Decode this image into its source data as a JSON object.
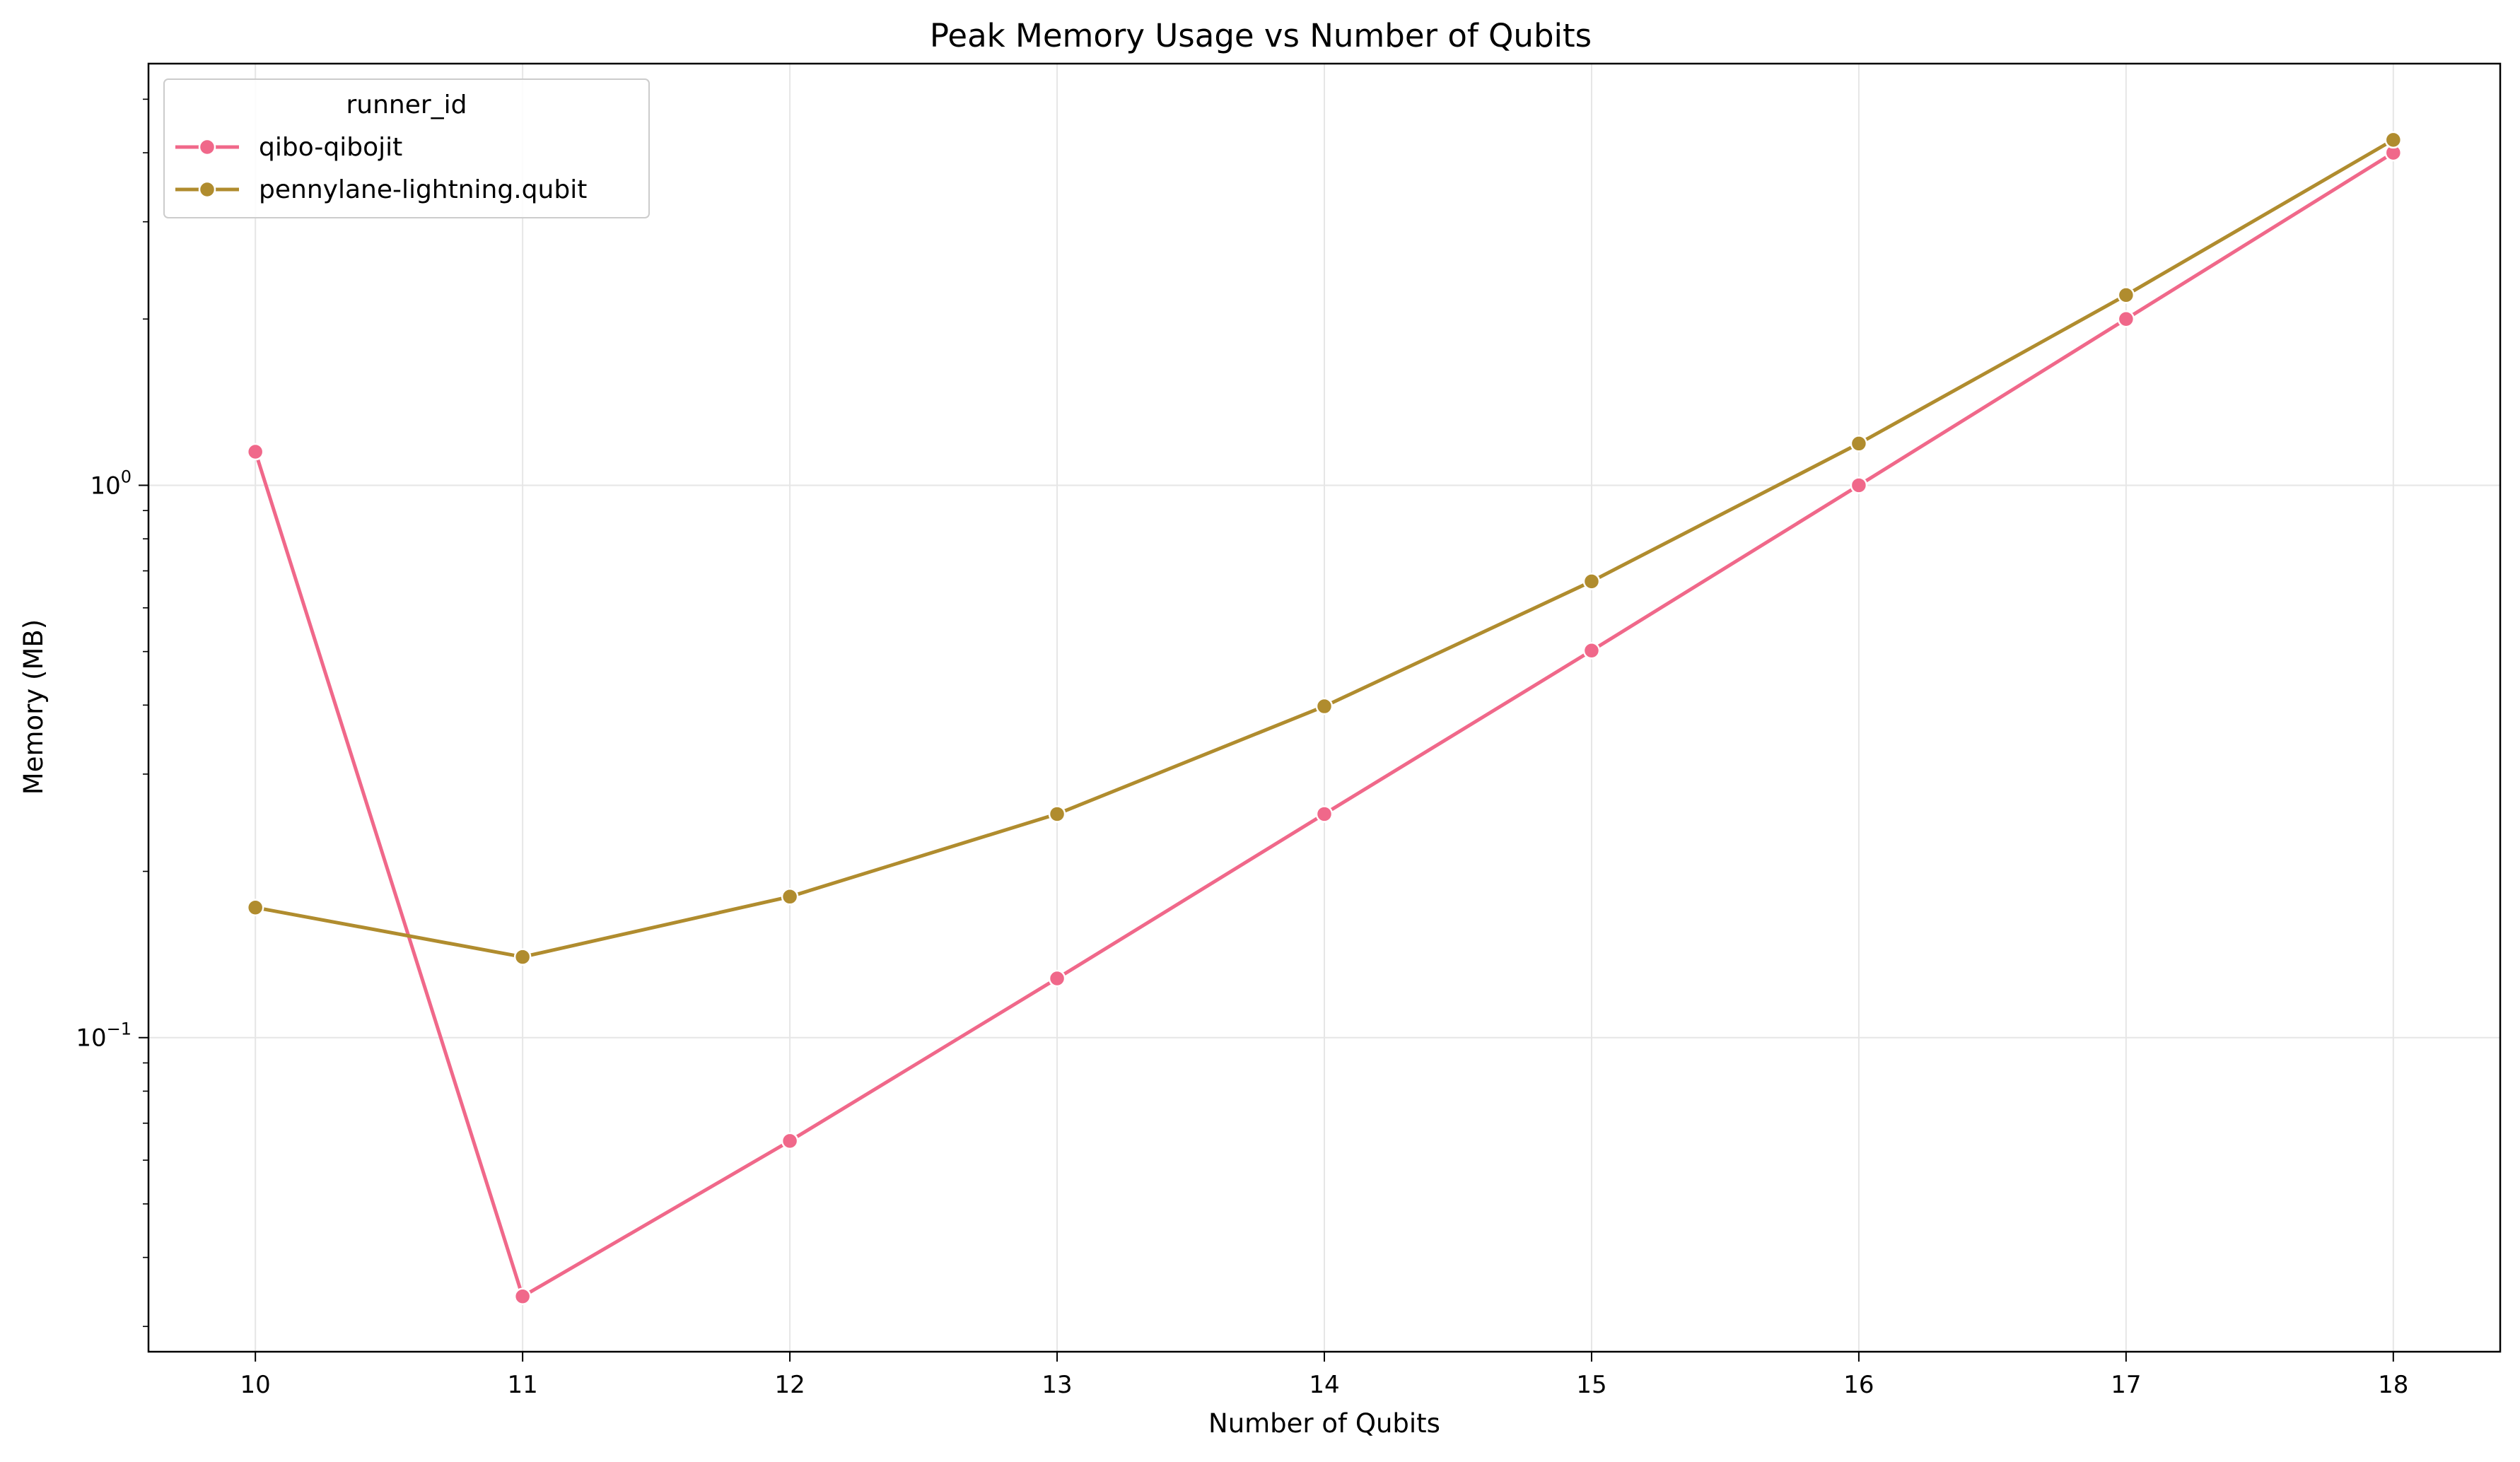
{
  "chart_data": {
    "type": "line",
    "title": "Peak Memory Usage vs Number of Qubits",
    "xlabel": "Number of Qubits",
    "ylabel": "Memory (MB)",
    "yscale": "log",
    "x": [
      10,
      11,
      12,
      13,
      14,
      15,
      16,
      17,
      18
    ],
    "xticks": [
      "10",
      "11",
      "12",
      "13",
      "14",
      "15",
      "16",
      "17",
      "18"
    ],
    "xlim": [
      9.6,
      18.4
    ],
    "ylim": [
      0.027,
      5.8
    ],
    "yticks": [
      {
        "value": 0.1,
        "base": "10",
        "exp": "−1"
      },
      {
        "value": 1,
        "base": "10",
        "exp": "0"
      }
    ],
    "grid": true,
    "legend": {
      "title": "runner_id",
      "position": "top-left"
    },
    "series": [
      {
        "name": "qibo-qibojit",
        "color": "#f0688a",
        "values": [
          1.15,
          0.034,
          0.065,
          0.128,
          0.254,
          0.502,
          1.0,
          2.0,
          4.0
        ]
      },
      {
        "name": "pennylane-lightning.qubit",
        "color": "#b08c2e",
        "values": [
          0.172,
          0.14,
          0.18,
          0.254,
          0.398,
          0.67,
          1.19,
          2.21,
          4.22
        ]
      }
    ]
  }
}
